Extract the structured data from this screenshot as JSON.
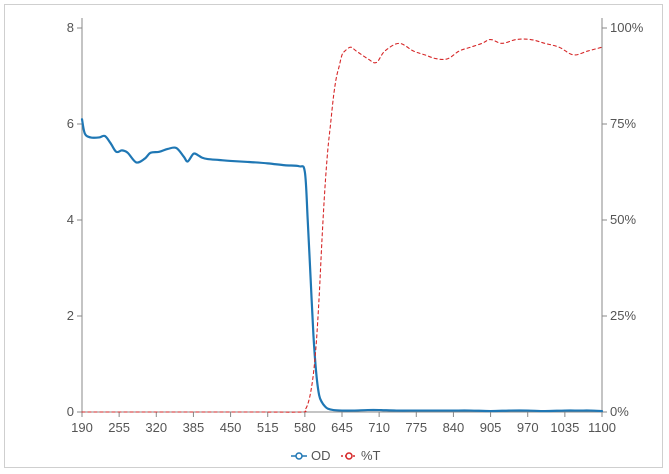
{
  "chart_data": {
    "type": "line",
    "xlabel": "",
    "ylabel_left": "",
    "ylabel_right": "",
    "x_ticks": [
      190,
      255,
      320,
      385,
      450,
      515,
      580,
      645,
      710,
      775,
      840,
      905,
      970,
      1035,
      1100
    ],
    "xlim": [
      190,
      1100
    ],
    "y_left_ticks": [
      0,
      2,
      4,
      6,
      8
    ],
    "ylim_left": [
      0,
      8
    ],
    "y_right_ticks": [
      "0%",
      "25%",
      "50%",
      "75%",
      "100%"
    ],
    "ylim_right": [
      0,
      100
    ],
    "legend": {
      "placement": "bottom-center",
      "items": [
        "OD",
        "%T"
      ]
    },
    "colors": {
      "od": "#1f77b4",
      "transmission": "#d62728"
    },
    "series": [
      {
        "name": "OD",
        "axis": "left",
        "style": "solid",
        "x": [
          190,
          195,
          205,
          220,
          230,
          240,
          250,
          260,
          270,
          285,
          300,
          310,
          325,
          340,
          355,
          368,
          375,
          385,
          393,
          400,
          410,
          430,
          450,
          480,
          515,
          545,
          570,
          580,
          585,
          590,
          595,
          600,
          605,
          610,
          615,
          620,
          630,
          645,
          665,
          690,
          710,
          740,
          775,
          800,
          820,
          840,
          870,
          905,
          940,
          970,
          1000,
          1035,
          1060,
          1080,
          1100
        ],
        "y": [
          6.1,
          5.8,
          5.72,
          5.72,
          5.75,
          5.6,
          5.42,
          5.45,
          5.4,
          5.2,
          5.28,
          5.4,
          5.42,
          5.48,
          5.5,
          5.32,
          5.22,
          5.38,
          5.35,
          5.3,
          5.27,
          5.25,
          5.23,
          5.21,
          5.18,
          5.14,
          5.12,
          5.0,
          4.0,
          2.8,
          1.6,
          0.8,
          0.35,
          0.2,
          0.12,
          0.07,
          0.04,
          0.03,
          0.03,
          0.04,
          0.04,
          0.03,
          0.03,
          0.03,
          0.03,
          0.03,
          0.03,
          0.02,
          0.03,
          0.03,
          0.02,
          0.03,
          0.03,
          0.03,
          0.02
        ]
      },
      {
        "name": "%T",
        "axis": "right",
        "style": "dashed",
        "x": [
          190,
          300,
          400,
          500,
          575,
          580,
          585,
          590,
          595,
          600,
          605,
          610,
          615,
          620,
          625,
          630,
          635,
          640,
          645,
          650,
          660,
          670,
          690,
          705,
          720,
          745,
          770,
          790,
          810,
          830,
          850,
          870,
          890,
          905,
          925,
          950,
          975,
          1000,
          1025,
          1050,
          1075,
          1100
        ],
        "y": [
          0,
          0,
          0,
          0,
          0,
          0.5,
          2,
          5,
          10,
          18,
          30,
          45,
          58,
          68,
          75,
          82,
          87,
          90,
          93,
          94,
          95,
          94,
          92,
          91,
          94,
          96,
          94,
          93,
          92,
          92,
          94,
          95,
          96,
          97,
          96,
          97,
          97,
          96,
          95,
          93,
          94,
          95
        ]
      }
    ]
  }
}
